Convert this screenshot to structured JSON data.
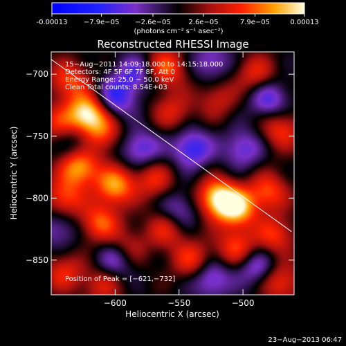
{
  "colorbar": {
    "ticks": [
      "-0.00013",
      "−7.9e−05",
      "−2.6e−05",
      "2.6e−05",
      "7.9e−05",
      "0.00013"
    ],
    "tick_values": [
      -0.00013,
      -7.9e-05,
      -2.6e-05,
      2.6e-05,
      7.9e-05,
      0.00013
    ],
    "range": [
      -0.00013,
      0.00013
    ],
    "units_label": "(photons cm⁻² s⁻¹ asec⁻²)"
  },
  "chart_data": {
    "type": "heatmap",
    "title": "Reconstructed RHESSI Image",
    "xlabel": "Heliocentric X (arcsec)",
    "ylabel": "Heliocentric Y (arcsec)",
    "xlim": [
      -650,
      -460
    ],
    "ylim": [
      -878,
      -682
    ],
    "xticks": [
      -600,
      -550,
      -500
    ],
    "yticks": [
      -700,
      -750,
      -800,
      -850
    ],
    "xtick_labels": [
      "−600",
      "−550",
      "−500"
    ],
    "ytick_labels": [
      "−700",
      "−750",
      "−800",
      "−850"
    ],
    "annotations": [
      "15−Aug−2011 14:09:18.000 to 14:15:18.000",
      "Detectors: 4F 5F 6F 7F 8F, Att 0",
      "Energy Range: 25.0 − 50.0 keV",
      "Clean    Total counts: 8.54E+03"
    ],
    "peak_label": "Position of Peak = [−621,−732]",
    "peak": [
      -621,
      -732
    ],
    "limb_line": {
      "from": [
        -650,
        -688
      ],
      "to": [
        -462,
        -827
      ]
    },
    "blobs": [
      {
        "x": -622,
        "y": -732,
        "v": 1.0
      },
      {
        "x": -636,
        "y": -705,
        "v": 0.55
      },
      {
        "x": -645,
        "y": -740,
        "v": 0.4
      },
      {
        "x": -610,
        "y": -748,
        "v": 0.5
      },
      {
        "x": -560,
        "y": -695,
        "v": 0.6
      },
      {
        "x": -555,
        "y": -730,
        "v": 0.4
      },
      {
        "x": -520,
        "y": -720,
        "v": 0.35
      },
      {
        "x": -490,
        "y": -700,
        "v": 0.45
      },
      {
        "x": -470,
        "y": -745,
        "v": 0.5
      },
      {
        "x": -628,
        "y": -775,
        "v": 0.8
      },
      {
        "x": -600,
        "y": -790,
        "v": 0.75
      },
      {
        "x": -570,
        "y": -785,
        "v": 0.45
      },
      {
        "x": -520,
        "y": -800,
        "v": 0.9
      },
      {
        "x": -505,
        "y": -808,
        "v": 0.85
      },
      {
        "x": -480,
        "y": -795,
        "v": 0.55
      },
      {
        "x": -640,
        "y": -800,
        "v": 0.55
      },
      {
        "x": -612,
        "y": -820,
        "v": 0.6
      },
      {
        "x": -590,
        "y": -840,
        "v": 0.35
      },
      {
        "x": -560,
        "y": -825,
        "v": 0.45
      },
      {
        "x": -540,
        "y": -850,
        "v": 0.5
      },
      {
        "x": -505,
        "y": -840,
        "v": 0.55
      },
      {
        "x": -475,
        "y": -830,
        "v": 0.5
      },
      {
        "x": -640,
        "y": -860,
        "v": 0.45
      },
      {
        "x": -610,
        "y": -870,
        "v": 0.4
      },
      {
        "x": -470,
        "y": -868,
        "v": 0.5
      },
      {
        "x": -600,
        "y": -720,
        "v": -0.55
      },
      {
        "x": -580,
        "y": -760,
        "v": -0.5
      },
      {
        "x": -540,
        "y": -760,
        "v": -0.6
      },
      {
        "x": -500,
        "y": -760,
        "v": -0.45
      },
      {
        "x": -585,
        "y": -700,
        "v": -0.45
      },
      {
        "x": -525,
        "y": -690,
        "v": -0.4
      },
      {
        "x": -480,
        "y": -720,
        "v": -0.5
      },
      {
        "x": -600,
        "y": -850,
        "v": -0.45
      },
      {
        "x": -550,
        "y": -810,
        "v": -0.4
      },
      {
        "x": -525,
        "y": -865,
        "v": -0.5
      },
      {
        "x": -490,
        "y": -855,
        "v": -0.45
      },
      {
        "x": -645,
        "y": -825,
        "v": -0.35
      },
      {
        "x": -630,
        "y": -755,
        "v": -0.3
      }
    ]
  },
  "footer": {
    "date": "23−Aug−2013 06:47"
  }
}
